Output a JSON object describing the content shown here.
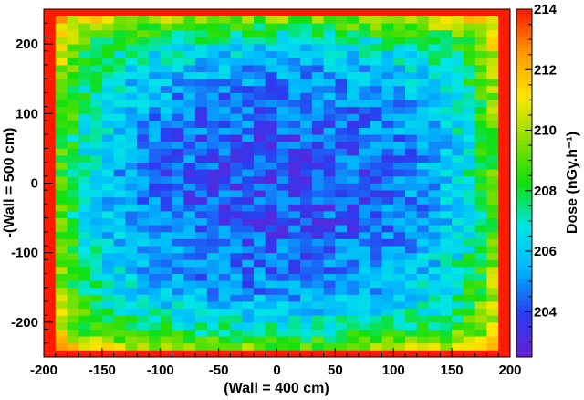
{
  "chart_data": {
    "type": "heatmap",
    "title": "",
    "xlabel": "(Wall = 400 cm)",
    "ylabel": "-(Wall = 500 cm)",
    "zlabel": "Dose (nGy.h⁻¹)",
    "xlim": [
      -200,
      200
    ],
    "ylim": [
      -250,
      250
    ],
    "zlim": [
      202.5,
      214
    ],
    "x_ticks": [
      -200,
      -150,
      -100,
      -50,
      0,
      50,
      100,
      150,
      200
    ],
    "y_ticks": [
      -200,
      -100,
      0,
      100,
      200
    ],
    "z_ticks": [
      204,
      206,
      208,
      210,
      212,
      214
    ],
    "bins": {
      "nx": 40,
      "ny": 50
    },
    "pattern": "dose minimum (~203-205) near center, rising to ~214 at the walls",
    "center_value": 204,
    "edge_value": 214,
    "colormap": [
      "#6a1fd6",
      "#2a3cf0",
      "#00b3ff",
      "#00e6e6",
      "#10e010",
      "#8ce000",
      "#ffe600",
      "#ff9a00",
      "#ff1a00"
    ]
  }
}
